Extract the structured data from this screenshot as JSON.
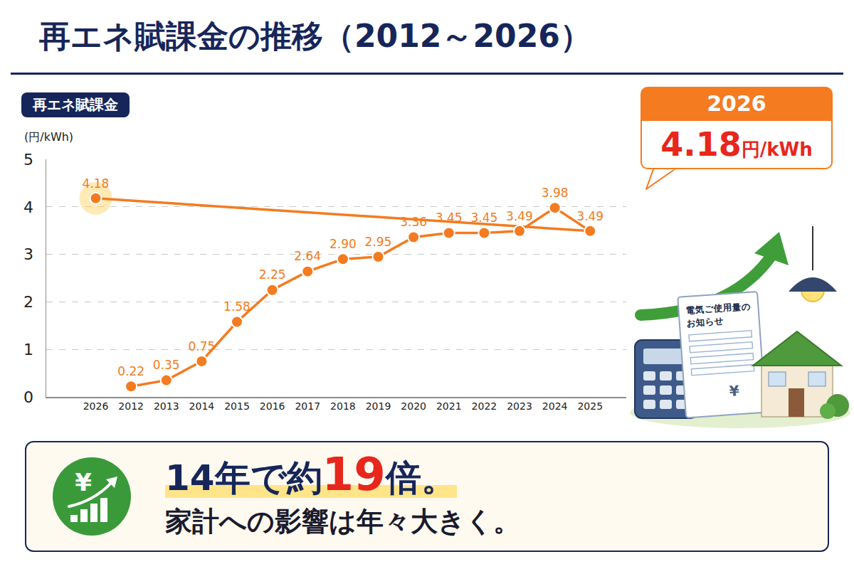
{
  "chart_data": {
    "type": "line",
    "title": "再エネ賦課金の推移（2012～2026）",
    "y_label": "(円/kWh)",
    "categories": [
      "2012",
      "2013",
      "2014",
      "2015",
      "2016",
      "2017",
      "2018",
      "2019",
      "2020",
      "2021",
      "2022",
      "2023",
      "2024",
      "2025",
      "2026"
    ],
    "series": [
      {
        "name": "再エネ賦課金",
        "color": "#f47b20",
        "marker": "circle",
        "values": [
          0.22,
          0.35,
          0.75,
          1.58,
          2.25,
          2.64,
          2.9,
          2.95,
          3.36,
          3.45,
          3.45,
          3.49,
          3.98,
          3.49,
          4.18
        ],
        "value_labels": [
          "0.22",
          "0.35",
          "0.75",
          "1.58",
          "2.25",
          "2.64",
          "2.90",
          "2.95",
          "3.36",
          "3.45",
          "3.45",
          "3.49",
          "3.98",
          "3.49",
          "4.18"
        ]
      }
    ],
    "ylim": [
      0,
      5
    ],
    "yticks": [
      0,
      1,
      2,
      3,
      4,
      5
    ],
    "grid": true,
    "data_labels": true
  },
  "callout": {
    "year": "2026",
    "value": 4.18,
    "unit": "円/kWh"
  },
  "summary": {
    "icon": "¥",
    "line1": [
      "14年で約",
      "19",
      "倍。"
    ],
    "line2": "家計への影響は年々大きく。"
  },
  "illustration": {
    "bill_title": [
      "電気ご使用量の",
      "お知らせ"
    ],
    "currency": "¥"
  }
}
